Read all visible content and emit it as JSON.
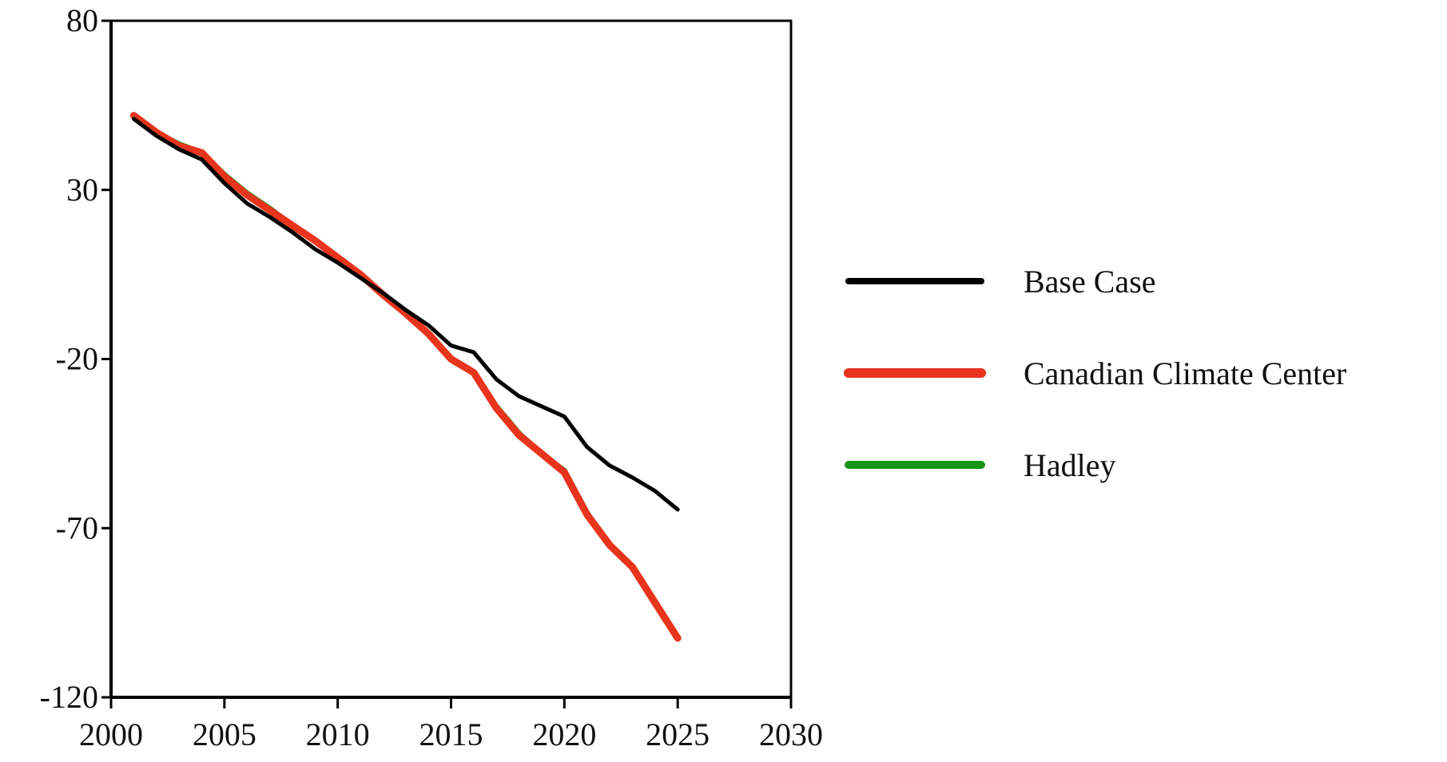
{
  "chart_data": {
    "type": "line",
    "x": [
      2001,
      2002,
      2003,
      2004,
      2005,
      2006,
      2007,
      2008,
      2009,
      2010,
      2011,
      2012,
      2013,
      2014,
      2015,
      2016,
      2017,
      2018,
      2019,
      2020,
      2021,
      2022,
      2023,
      2024,
      2025
    ],
    "series": [
      {
        "name": "Base Case",
        "color": "#000000",
        "values": [
          51,
          46,
          42,
          39,
          32,
          26,
          22,
          17.5,
          12.5,
          8.5,
          4,
          -0.5,
          -5.5,
          -10,
          -16,
          -18,
          -26,
          -31,
          -34,
          -37,
          -46,
          -51.5,
          -55,
          -59,
          -64.5
        ]
      },
      {
        "name": "Canadian Climate Center",
        "color": "#e8341c",
        "values": [
          52,
          47,
          43,
          41,
          34,
          28.5,
          24,
          19.5,
          15,
          10,
          5,
          -1,
          -6.5,
          -12.5,
          -20,
          -24,
          -34.5,
          -42.5,
          -48,
          -53.5,
          -66,
          -75,
          -81.5,
          -92,
          -102.5
        ]
      },
      {
        "name": "Hadley",
        "color": "#149614",
        "values": [
          52,
          47,
          43.5,
          41,
          34.5,
          29,
          24.5,
          19.5,
          15,
          10,
          5,
          -1,
          -6.5,
          -12.5,
          -20,
          -24,
          -34,
          -42,
          -48,
          -53,
          -65.5,
          -75,
          -81.5,
          -92,
          -102.5
        ]
      }
    ],
    "xlim": [
      2000,
      2030
    ],
    "xticks": [
      2000,
      2005,
      2010,
      2015,
      2020,
      2025,
      2030
    ],
    "ylim": [
      -120,
      80
    ],
    "yticks": [
      -120,
      -70,
      -20,
      30,
      80
    ]
  }
}
